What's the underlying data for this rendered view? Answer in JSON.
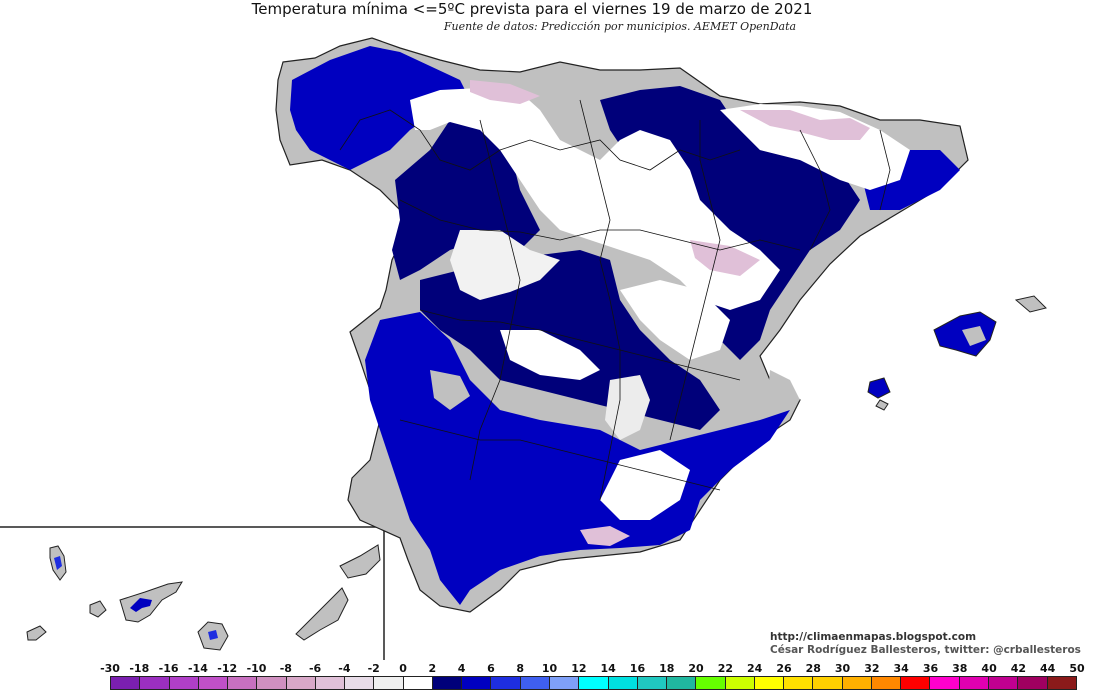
{
  "header": {
    "title": "Temperatura mínima <=5ºC prevista para el viernes 19 de marzo de 2021",
    "subtitle": "Fuente de datos: Predicción por municipios. AEMET OpenData"
  },
  "credits": {
    "blog": "http://climaenmapas.blogspot.com",
    "author": "César Rodríguez Ballesteros, twitter: @crballesteros"
  },
  "legend": {
    "labels": [
      "-30",
      "-18",
      "-16",
      "-14",
      "-12",
      "-10",
      "-8",
      "-6",
      "-4",
      "-2",
      "0",
      "2",
      "4",
      "6",
      "8",
      "10",
      "12",
      "14",
      "16",
      "18",
      "20",
      "22",
      "24",
      "26",
      "28",
      "30",
      "32",
      "34",
      "36",
      "38",
      "40",
      "42",
      "44",
      "50"
    ],
    "colors": [
      "#7b1fb0",
      "#9b2fc0",
      "#b03fc8",
      "#c050c8",
      "#c870c0",
      "#d090c0",
      "#d8a8c8",
      "#e0c0d8",
      "#e8dce8",
      "#f0f0f0",
      "#ffffff",
      "#00007a",
      "#0000c0",
      "#1e2ee0",
      "#3f5ff0",
      "#7fa0f8",
      "#00ffff",
      "#00e0e0",
      "#20c8c0",
      "#20b8a0",
      "#66ff00",
      "#ccff00",
      "#ffff00",
      "#ffe000",
      "#ffd000",
      "#ffb000",
      "#ff8800",
      "#ff0000",
      "#ff00cc",
      "#e000b0",
      "#c00090",
      "#a00060",
      "#8b1a1a"
    ]
  },
  "map_colors": {
    "land_grey": "#c0c0c0",
    "snow_white": "#ffffff",
    "deep_navy": "#00007a",
    "blue": "#0000c0",
    "bright_blue": "#1e2ee0",
    "pink_highlands": "#e0c0d8",
    "light_grey_relief": "#e6e6e6"
  }
}
